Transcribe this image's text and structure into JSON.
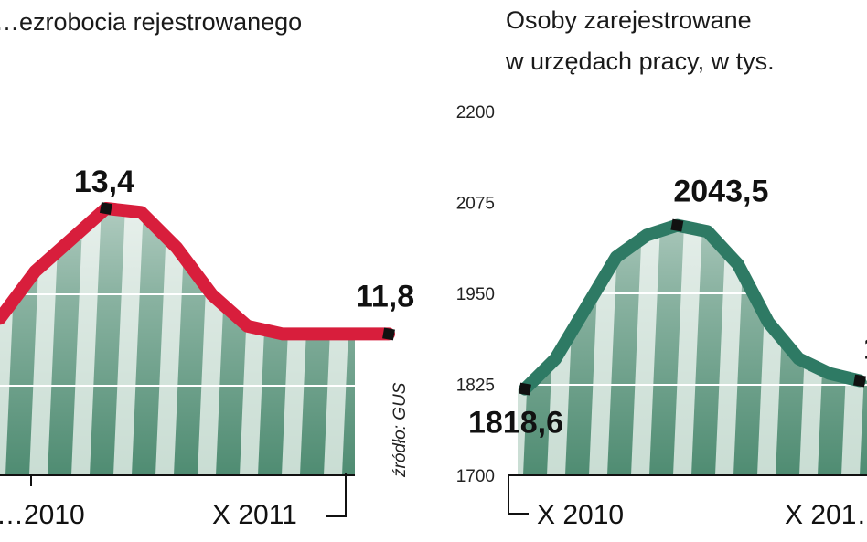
{
  "chart_data": [
    {
      "type": "line",
      "title": "…ezrobocia rejestrowanego",
      "series_color": "#d81e3c",
      "ylim": [
        10.0,
        14.6
      ],
      "x_tick_labels": [
        "…2010",
        "X 2011"
      ],
      "values": [
        12.0,
        12.6,
        13.0,
        13.4,
        13.35,
        12.9,
        12.3,
        11.9,
        11.8,
        11.8,
        11.8,
        11.8
      ],
      "labelled_points": [
        {
          "index": 3,
          "label": "13,4"
        },
        {
          "index": 11,
          "label": "11,8"
        }
      ],
      "source": "źródło: GUS"
    },
    {
      "type": "line",
      "title_lines": [
        "Osoby zarejestrowane",
        "w urzędach pracy, w tys."
      ],
      "series_color": "#2e7a64",
      "ylim": [
        1700,
        2200
      ],
      "y_ticks": [
        "2200",
        "2075",
        "1950",
        "1825",
        "1700"
      ],
      "x_tick_labels": [
        "X 2010",
        "X 201…"
      ],
      "values": [
        1818.6,
        1860,
        1930,
        2000,
        2030,
        2043.5,
        2035,
        1990,
        1910,
        1860,
        1840,
        1830
      ],
      "labelled_points": [
        {
          "index": 0,
          "label": "1818,6"
        },
        {
          "index": 5,
          "label": "2043,5"
        },
        {
          "index": 11,
          "label": "1…"
        }
      ]
    }
  ],
  "colors": {
    "stripe_dark": "#4f8c72",
    "stripe_light": "#c9ddd3",
    "gridline": "#ffffff",
    "marker": "#111111"
  }
}
